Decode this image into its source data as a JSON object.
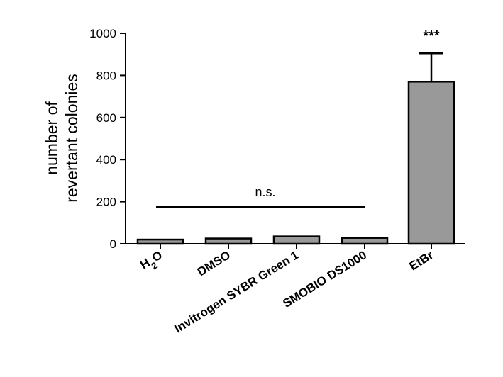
{
  "chart_data": {
    "type": "bar",
    "categories": [
      "H2O",
      "DMSO",
      "Invitrogen SYBR Green 1",
      "SMOBIO DS1000",
      "EtBr"
    ],
    "values": [
      20,
      25,
      35,
      28,
      770
    ],
    "error_upper": [
      null,
      null,
      null,
      null,
      905
    ],
    "ylabel_line1": "number of",
    "ylabel_line2": "revertant colonies",
    "ylim": [
      0,
      1000
    ],
    "yticks": [
      0,
      200,
      400,
      600,
      800,
      1000
    ],
    "bar_color": "#999999",
    "annotations": {
      "ns_label": "n.s.",
      "ns_span": [
        "H2O",
        "SMOBIO DS1000"
      ],
      "significance_label": "***",
      "significance_category": "EtBr"
    }
  }
}
